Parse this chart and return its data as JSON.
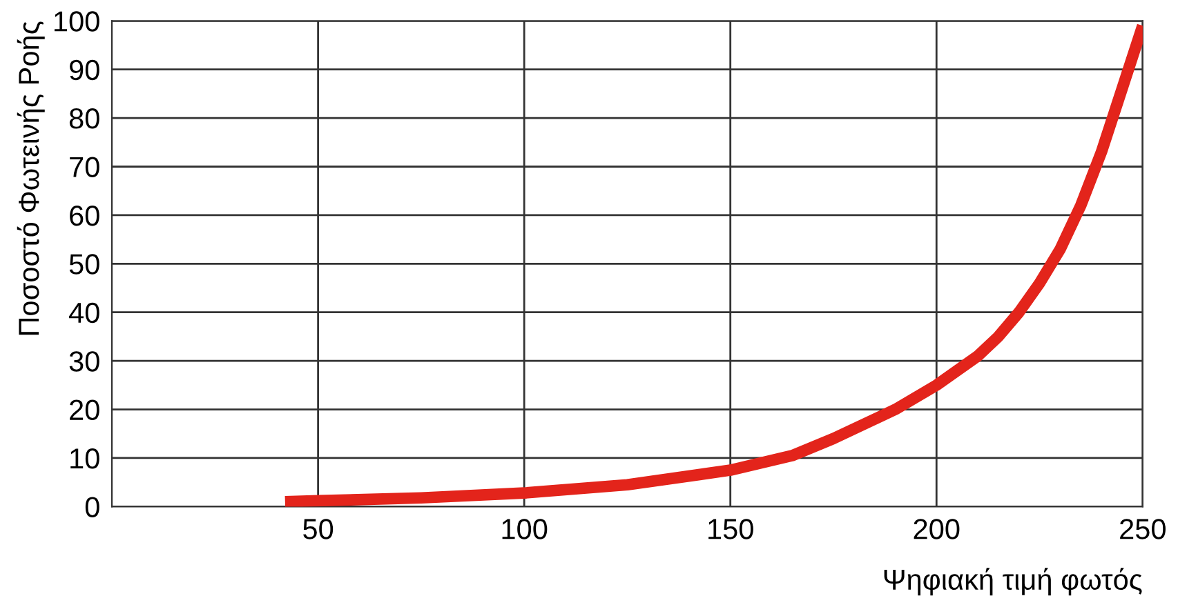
{
  "chart_data": {
    "type": "line",
    "xlabel": "Ψηφιακή τιμή φωτός",
    "ylabel": "Ποσοστό Φωτεινής Ροής",
    "xlim": [
      0,
      250
    ],
    "ylim": [
      0,
      100
    ],
    "xticks": [
      50,
      100,
      150,
      200,
      250
    ],
    "yticks": [
      0,
      10,
      20,
      30,
      40,
      50,
      60,
      70,
      80,
      90,
      100
    ],
    "grid": true,
    "marker": "none",
    "line_style": "solid",
    "series": [
      {
        "color": "#e3241b",
        "x": [
          42,
          50,
          75,
          100,
          125,
          150,
          165,
          175,
          190,
          200,
          210,
          215,
          220,
          225,
          230,
          235,
          240,
          245,
          250
        ],
        "values": [
          1,
          1.2,
          1.8,
          2.8,
          4.5,
          7.5,
          10.5,
          14,
          20,
          25,
          31,
          35,
          40,
          46,
          53,
          62,
          73,
          86,
          99
        ]
      }
    ]
  }
}
